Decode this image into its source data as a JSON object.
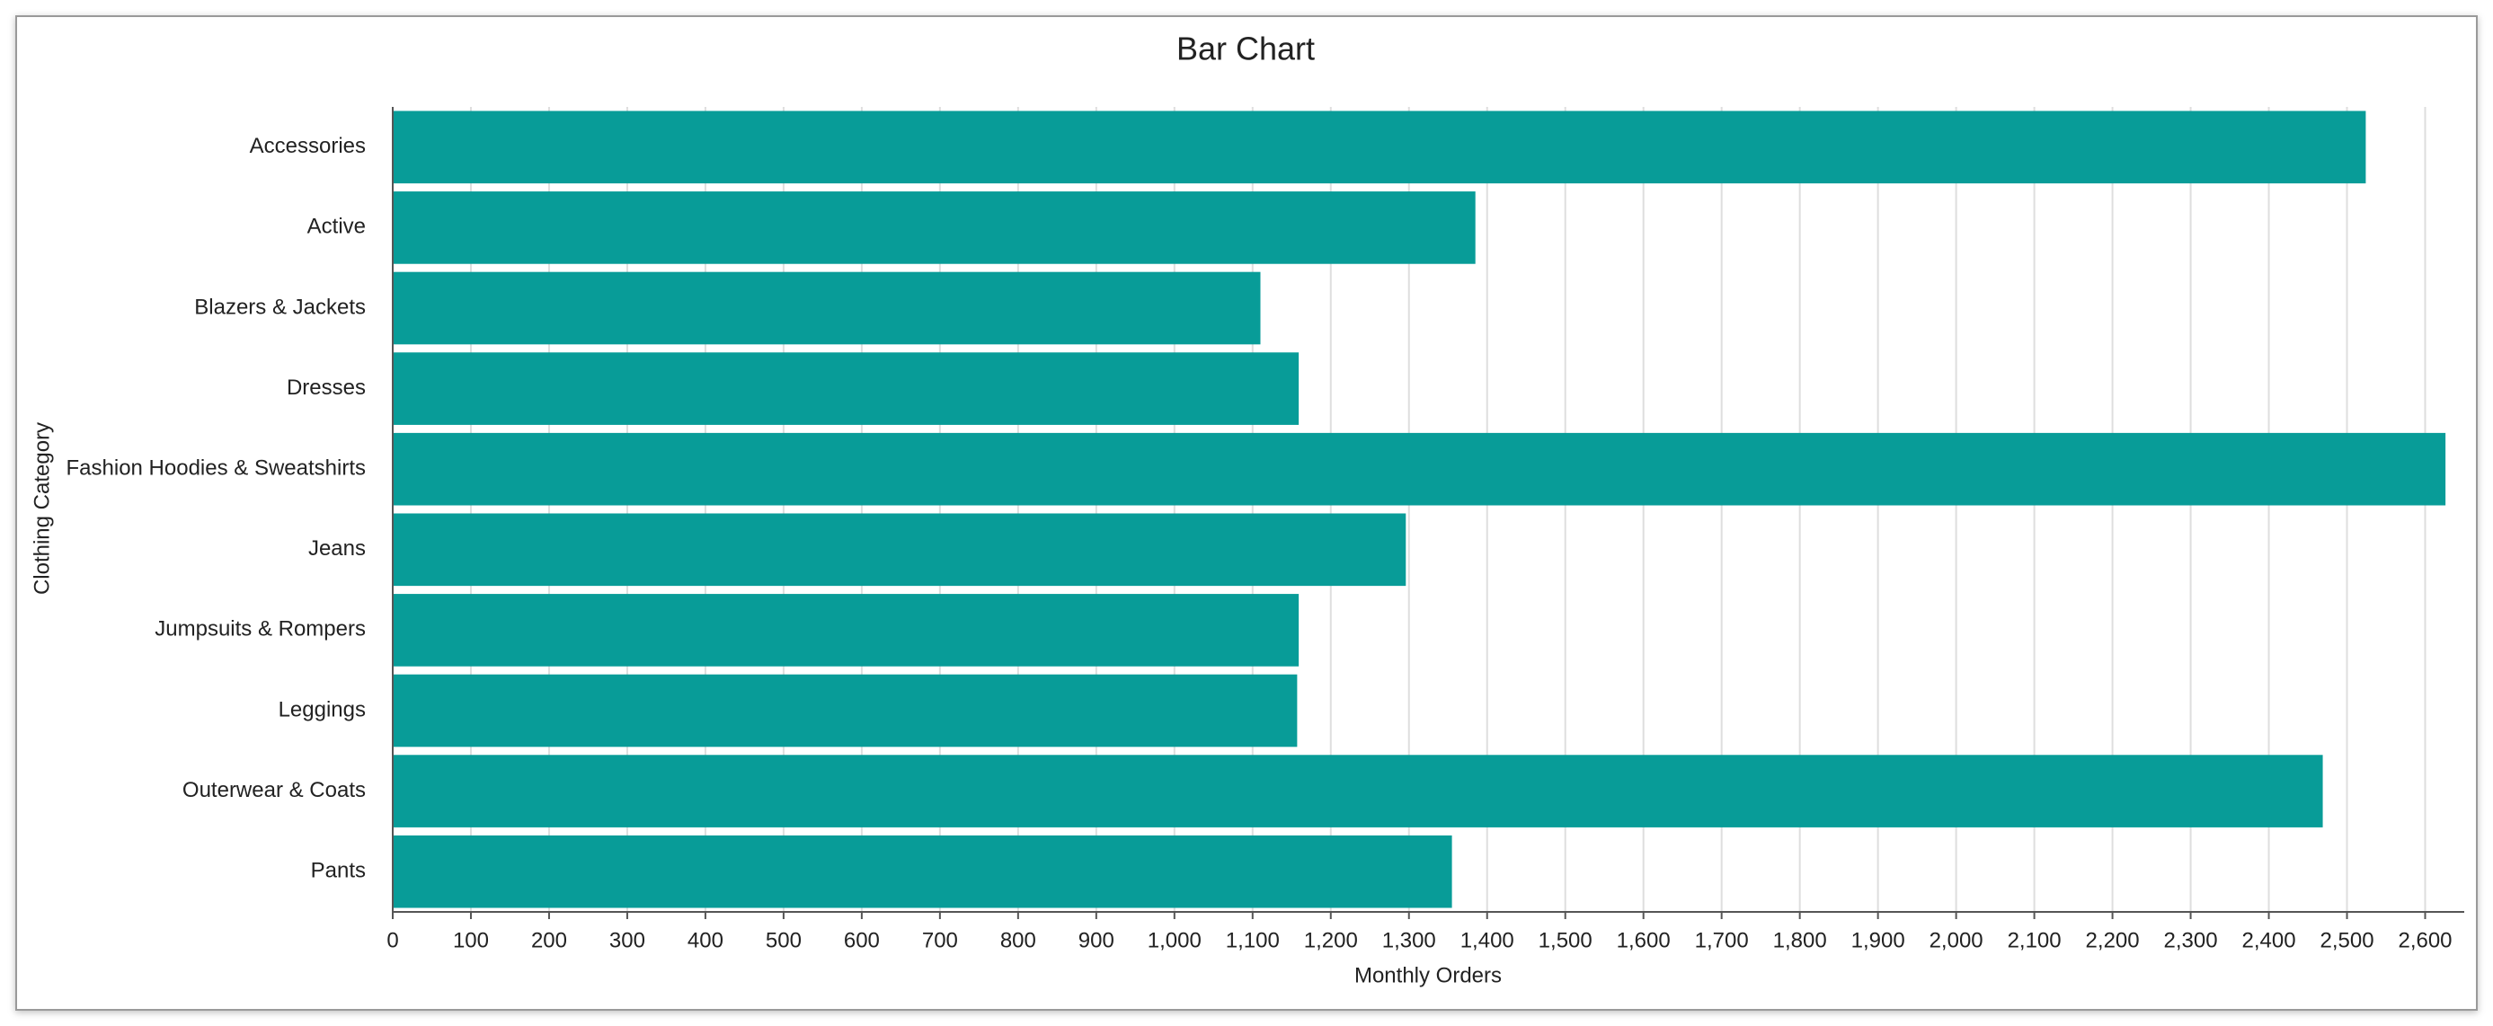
{
  "chart_data": {
    "type": "bar",
    "orientation": "horizontal",
    "title": "Bar Chart",
    "x_label": "Monthly Orders",
    "y_label": "Clothing Category",
    "categories": [
      "Accessories",
      "Active",
      "Blazers & Jackets",
      "Dresses",
      "Fashion Hoodies & Sweatshirts",
      "Jeans",
      "Jumpsuits & Rompers",
      "Leggings",
      "Outerwear & Coats",
      "Pants"
    ],
    "values": [
      2524,
      1385,
      1110,
      1159,
      2626,
      1296,
      1159,
      1157,
      2469,
      1355
    ],
    "color": "#089c98",
    "xlim": [
      0,
      2650
    ],
    "xticks": [
      0,
      100,
      200,
      300,
      400,
      500,
      600,
      700,
      800,
      900,
      {
        "value": 1000,
        "label": "1,000"
      },
      {
        "value": 1100,
        "label": "1,100"
      },
      {
        "value": 1200,
        "label": "1,200"
      },
      {
        "value": 1300,
        "label": "1,300"
      },
      {
        "value": 1400,
        "label": "1,400"
      },
      {
        "value": 1500,
        "label": "1,500"
      },
      {
        "value": 1600,
        "label": "1,600"
      },
      {
        "value": 1700,
        "label": "1,700"
      },
      {
        "value": 1800,
        "label": "1,800"
      },
      {
        "value": 1900,
        "label": "1,900"
      },
      {
        "value": 2000,
        "label": "2,000"
      },
      {
        "value": 2100,
        "label": "2,100"
      },
      {
        "value": 2200,
        "label": "2,200"
      },
      {
        "value": 2300,
        "label": "2,300"
      },
      {
        "value": 2400,
        "label": "2,400"
      },
      {
        "value": 2500,
        "label": "2,500"
      },
      {
        "value": 2600,
        "label": "2,600"
      }
    ],
    "grid": true
  }
}
